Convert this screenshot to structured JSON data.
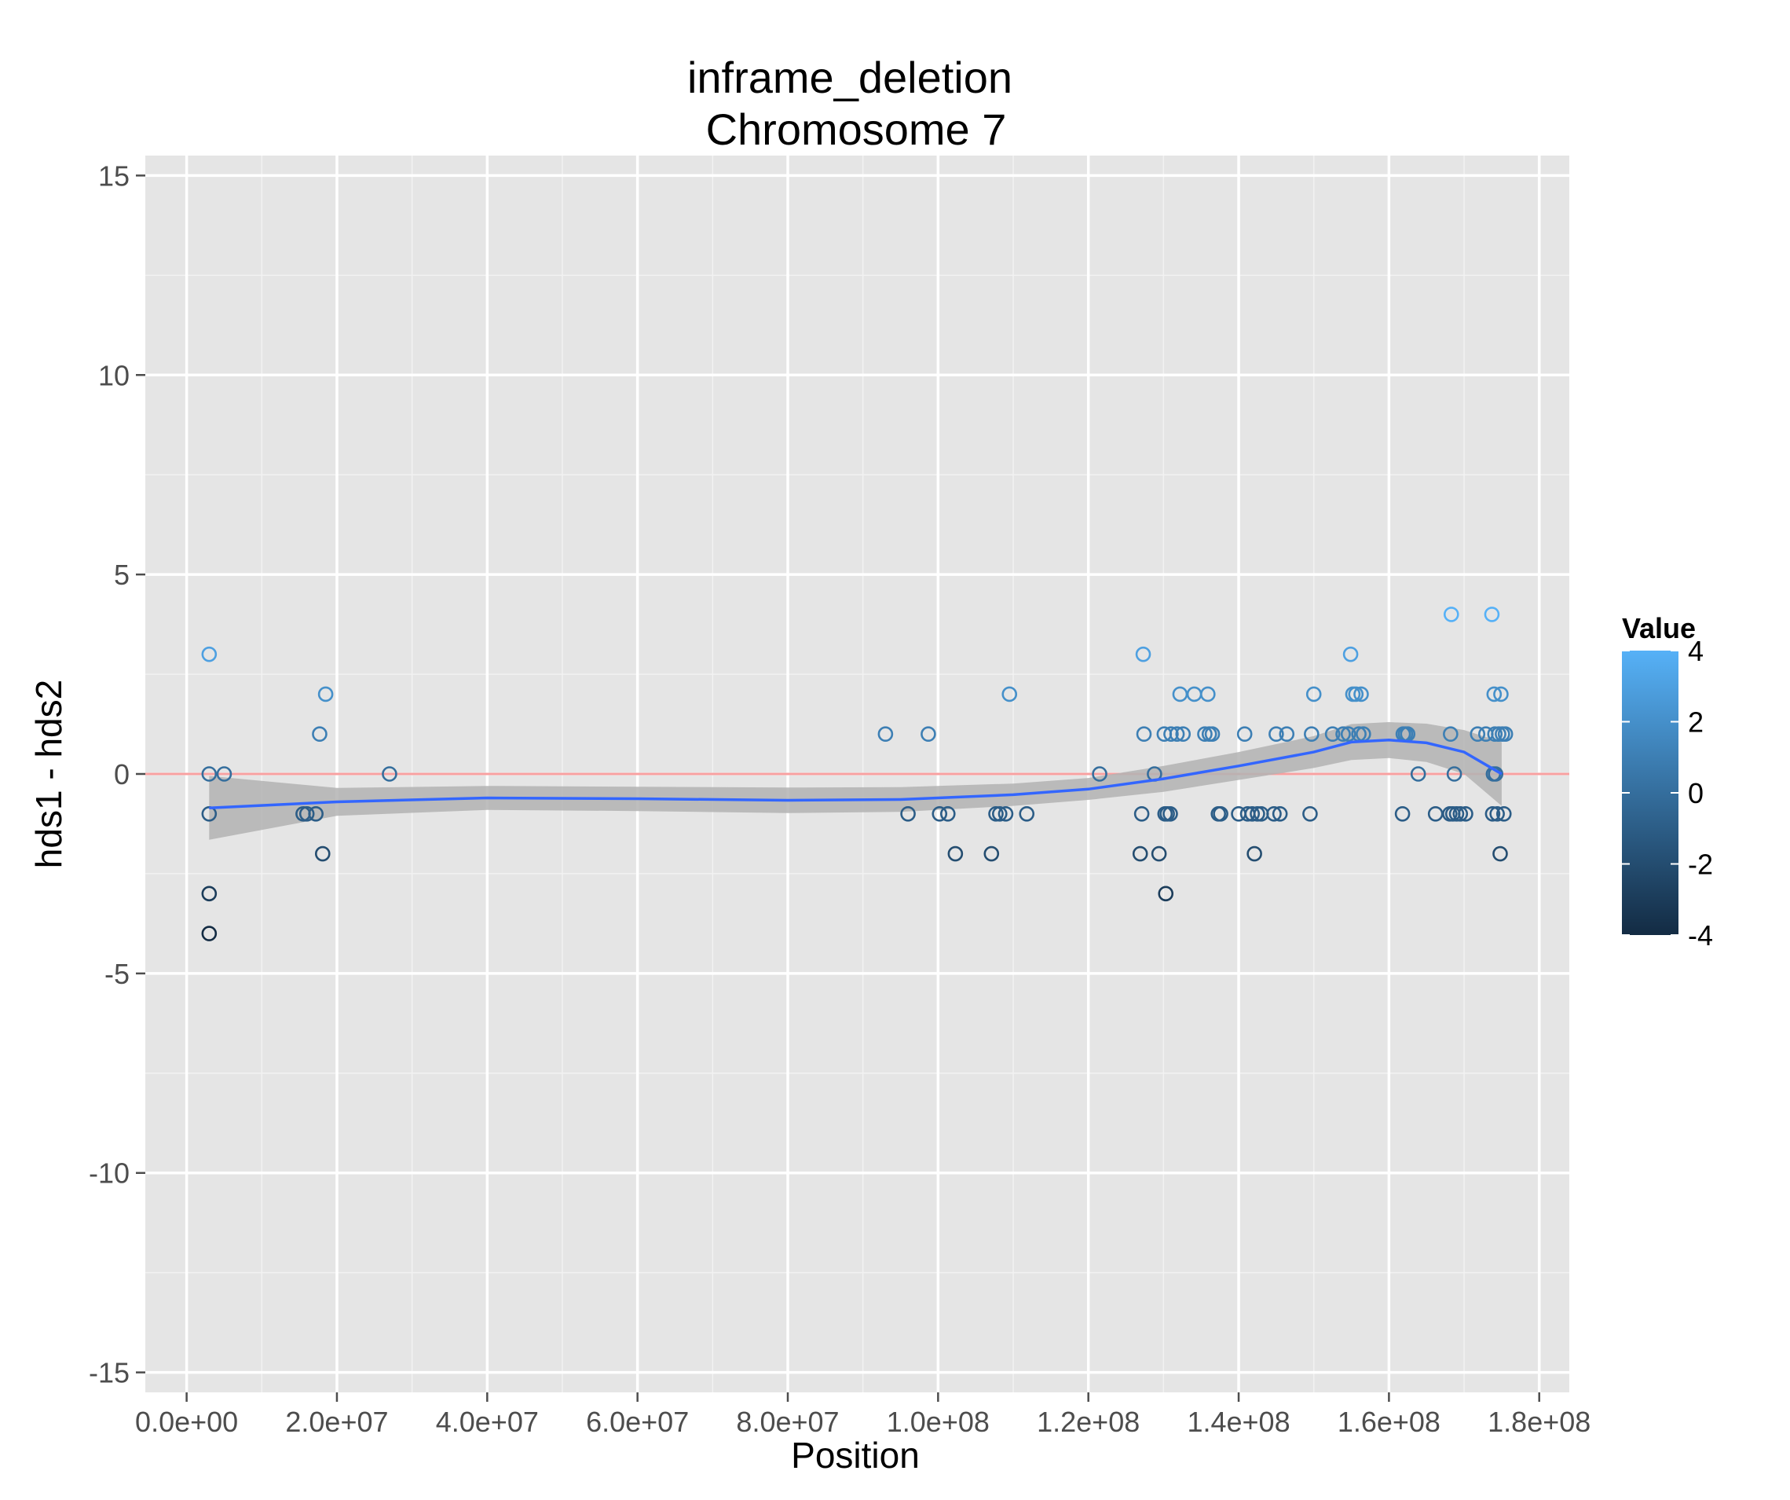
{
  "chart_data": {
    "type": "scatter",
    "title": "inframe_deletion",
    "subtitle": "Chromosome 7",
    "xlabel": "Position",
    "ylabel": "hds1 - hds2",
    "xlim": [
      -5500000,
      184000000
    ],
    "ylim": [
      -15.5,
      15.5
    ],
    "x_ticks": [
      0,
      20000000,
      40000000,
      60000000,
      80000000,
      100000000,
      120000000,
      140000000,
      160000000,
      180000000
    ],
    "x_tick_labels": [
      "0.0e+00",
      "2.0e+07",
      "4.0e+07",
      "6.0e+07",
      "8.0e+07",
      "1.0e+08",
      "1.2e+08",
      "1.4e+08",
      "1.6e+08",
      "1.8e+08"
    ],
    "y_ticks": [
      -15,
      -10,
      -5,
      0,
      5,
      10,
      15
    ],
    "y_tick_labels": [
      "-15",
      "-10",
      "-5",
      "0",
      "5",
      "10",
      "15"
    ],
    "grid": true,
    "reference_line": {
      "y": 0,
      "color": "#f8a0a0"
    },
    "smooth": {
      "color": "#3366ff",
      "band_color": "#b3b3b3",
      "x": [
        3000000,
        20000000,
        40000000,
        60000000,
        80000000,
        95000000,
        110000000,
        120000000,
        130000000,
        140000000,
        150000000,
        155000000,
        160000000,
        165000000,
        170000000,
        175000000
      ],
      "y": [
        -0.85,
        -0.7,
        -0.6,
        -0.62,
        -0.66,
        -0.64,
        -0.52,
        -0.38,
        -0.12,
        0.2,
        0.55,
        0.8,
        0.85,
        0.78,
        0.55,
        0.0
      ],
      "lower": [
        -1.65,
        -1.05,
        -0.9,
        -0.93,
        -0.98,
        -0.95,
        -0.8,
        -0.65,
        -0.45,
        -0.15,
        0.15,
        0.35,
        0.4,
        0.3,
        0.0,
        -0.8
      ],
      "upper": [
        -0.05,
        -0.35,
        -0.3,
        -0.32,
        -0.34,
        -0.33,
        -0.24,
        -0.1,
        0.2,
        0.55,
        0.95,
        1.25,
        1.3,
        1.26,
        1.1,
        0.8
      ]
    },
    "color_scale": {
      "title": "Value",
      "low": -4,
      "high": 4,
      "low_color": "#132b43",
      "high_color": "#56b1f7",
      "ticks": [
        4,
        2,
        0,
        -2,
        -4
      ],
      "tick_labels": [
        "4",
        "2",
        "0",
        "-2",
        "-4"
      ]
    },
    "points": [
      {
        "x": 3000000,
        "y": 3
      },
      {
        "x": 3000000,
        "y": 0
      },
      {
        "x": 3000000,
        "y": -1
      },
      {
        "x": 3000000,
        "y": -3
      },
      {
        "x": 3000000,
        "y": -4
      },
      {
        "x": 5000000,
        "y": 0
      },
      {
        "x": 15500000,
        "y": -1
      },
      {
        "x": 16000000,
        "y": -1
      },
      {
        "x": 17200000,
        "y": -1
      },
      {
        "x": 17700000,
        "y": 1
      },
      {
        "x": 18100000,
        "y": -2
      },
      {
        "x": 18500000,
        "y": 2
      },
      {
        "x": 27000000,
        "y": 0
      },
      {
        "x": 93000000,
        "y": 1
      },
      {
        "x": 96000000,
        "y": -1
      },
      {
        "x": 98700000,
        "y": 1
      },
      {
        "x": 100200000,
        "y": -1
      },
      {
        "x": 101300000,
        "y": -1
      },
      {
        "x": 102300000,
        "y": -2
      },
      {
        "x": 107100000,
        "y": -2
      },
      {
        "x": 107700000,
        "y": -1
      },
      {
        "x": 108200000,
        "y": -1
      },
      {
        "x": 109000000,
        "y": -1
      },
      {
        "x": 109500000,
        "y": 2
      },
      {
        "x": 111800000,
        "y": -1
      },
      {
        "x": 121500000,
        "y": 0
      },
      {
        "x": 126900000,
        "y": -2
      },
      {
        "x": 127100000,
        "y": -1
      },
      {
        "x": 127300000,
        "y": 3
      },
      {
        "x": 127400000,
        "y": 1
      },
      {
        "x": 128800000,
        "y": 0
      },
      {
        "x": 129400000,
        "y": -2
      },
      {
        "x": 130100000,
        "y": 1
      },
      {
        "x": 130200000,
        "y": -1
      },
      {
        "x": 130300000,
        "y": -3
      },
      {
        "x": 130500000,
        "y": -1
      },
      {
        "x": 130900000,
        "y": -1
      },
      {
        "x": 131000000,
        "y": 1
      },
      {
        "x": 131800000,
        "y": 1
      },
      {
        "x": 132200000,
        "y": 2
      },
      {
        "x": 132600000,
        "y": 1
      },
      {
        "x": 134100000,
        "y": 2
      },
      {
        "x": 135500000,
        "y": 1
      },
      {
        "x": 135900000,
        "y": 2
      },
      {
        "x": 136100000,
        "y": 1
      },
      {
        "x": 136500000,
        "y": 1
      },
      {
        "x": 137300000,
        "y": -1
      },
      {
        "x": 137600000,
        "y": -1
      },
      {
        "x": 140000000,
        "y": -1
      },
      {
        "x": 140800000,
        "y": 1
      },
      {
        "x": 141200000,
        "y": -1
      },
      {
        "x": 141800000,
        "y": -1
      },
      {
        "x": 142100000,
        "y": -2
      },
      {
        "x": 142500000,
        "y": -1
      },
      {
        "x": 143000000,
        "y": -1
      },
      {
        "x": 144700000,
        "y": -1
      },
      {
        "x": 145000000,
        "y": 1
      },
      {
        "x": 145500000,
        "y": -1
      },
      {
        "x": 146400000,
        "y": 1
      },
      {
        "x": 149500000,
        "y": -1
      },
      {
        "x": 149700000,
        "y": 1
      },
      {
        "x": 150000000,
        "y": 2
      },
      {
        "x": 152500000,
        "y": 1
      },
      {
        "x": 153900000,
        "y": 1
      },
      {
        "x": 154600000,
        "y": 1
      },
      {
        "x": 154900000,
        "y": 3
      },
      {
        "x": 155200000,
        "y": 2
      },
      {
        "x": 155600000,
        "y": 2
      },
      {
        "x": 156000000,
        "y": 1
      },
      {
        "x": 156300000,
        "y": 2
      },
      {
        "x": 156600000,
        "y": 1
      },
      {
        "x": 161800000,
        "y": -1
      },
      {
        "x": 161900000,
        "y": 1
      },
      {
        "x": 162200000,
        "y": 1
      },
      {
        "x": 162500000,
        "y": 1
      },
      {
        "x": 163900000,
        "y": 0
      },
      {
        "x": 166200000,
        "y": -1
      },
      {
        "x": 168100000,
        "y": -1
      },
      {
        "x": 168200000,
        "y": 1
      },
      {
        "x": 168300000,
        "y": 4
      },
      {
        "x": 168500000,
        "y": -1
      },
      {
        "x": 168700000,
        "y": 0
      },
      {
        "x": 169000000,
        "y": -1
      },
      {
        "x": 169500000,
        "y": -1
      },
      {
        "x": 170200000,
        "y": -1
      },
      {
        "x": 171800000,
        "y": 1
      },
      {
        "x": 172900000,
        "y": 1
      },
      {
        "x": 173700000,
        "y": 4
      },
      {
        "x": 173800000,
        "y": -1
      },
      {
        "x": 173900000,
        "y": 0
      },
      {
        "x": 174000000,
        "y": 2
      },
      {
        "x": 174100000,
        "y": 1
      },
      {
        "x": 174200000,
        "y": 0
      },
      {
        "x": 174400000,
        "y": -1
      },
      {
        "x": 174600000,
        "y": 1
      },
      {
        "x": 174800000,
        "y": -2
      },
      {
        "x": 174900000,
        "y": 2
      },
      {
        "x": 175100000,
        "y": 1
      },
      {
        "x": 175300000,
        "y": -1
      },
      {
        "x": 175500000,
        "y": 1
      }
    ]
  }
}
